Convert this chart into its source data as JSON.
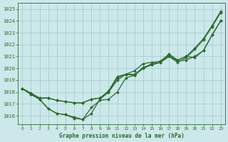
{
  "title": "Graphe pression niveau de la mer (hPa)",
  "background_color": "#cce8ea",
  "grid_color": "#aacdd0",
  "line_color": "#2d6a2d",
  "xlim": [
    -0.5,
    23.5
  ],
  "ylim": [
    1015.3,
    1025.5
  ],
  "yticks": [
    1016,
    1017,
    1018,
    1019,
    1020,
    1021,
    1022,
    1023,
    1024,
    1025
  ],
  "xticks": [
    0,
    1,
    2,
    3,
    4,
    5,
    6,
    7,
    8,
    9,
    10,
    11,
    12,
    13,
    14,
    15,
    16,
    17,
    18,
    19,
    20,
    21,
    22,
    23
  ],
  "series": [
    [
      1018.3,
      1017.8,
      1017.4,
      1016.6,
      1016.2,
      1016.1,
      1015.8,
      1015.7,
      1016.2,
      1017.4,
      1018.0,
      1019.0,
      1019.5,
      1019.4,
      1020.1,
      1020.3,
      1020.5,
      1021.0,
      1020.5,
      1020.9,
      1021.6,
      1022.4,
      1023.5,
      1024.7
    ],
    [
      1018.3,
      1017.8,
      1017.4,
      1016.6,
      1016.2,
      1016.1,
      1015.9,
      1015.7,
      1016.7,
      1017.3,
      1017.4,
      1018.0,
      1019.2,
      1019.4,
      1020.0,
      1020.3,
      1020.5,
      1021.0,
      1020.7,
      1021.0,
      1021.7,
      1022.5,
      1023.6,
      1024.8
    ],
    [
      1018.3,
      1017.9,
      1017.5,
      1017.5,
      1017.3,
      1017.2,
      1017.1,
      1017.1,
      1017.4,
      1017.5,
      1018.1,
      1019.3,
      1019.5,
      1019.5,
      1020.0,
      1020.4,
      1020.5,
      1021.1,
      1020.6,
      1020.7,
      1021.0,
      1021.5,
      1022.8,
      1024.0
    ],
    [
      1018.3,
      1017.9,
      1017.5,
      1017.5,
      1017.3,
      1017.2,
      1017.1,
      1017.1,
      1017.4,
      1017.5,
      1018.0,
      1019.2,
      1019.5,
      1019.8,
      1020.4,
      1020.5,
      1020.6,
      1021.2,
      1020.7,
      1021.0,
      1020.9,
      1021.5,
      1022.8,
      1024.0
    ]
  ]
}
